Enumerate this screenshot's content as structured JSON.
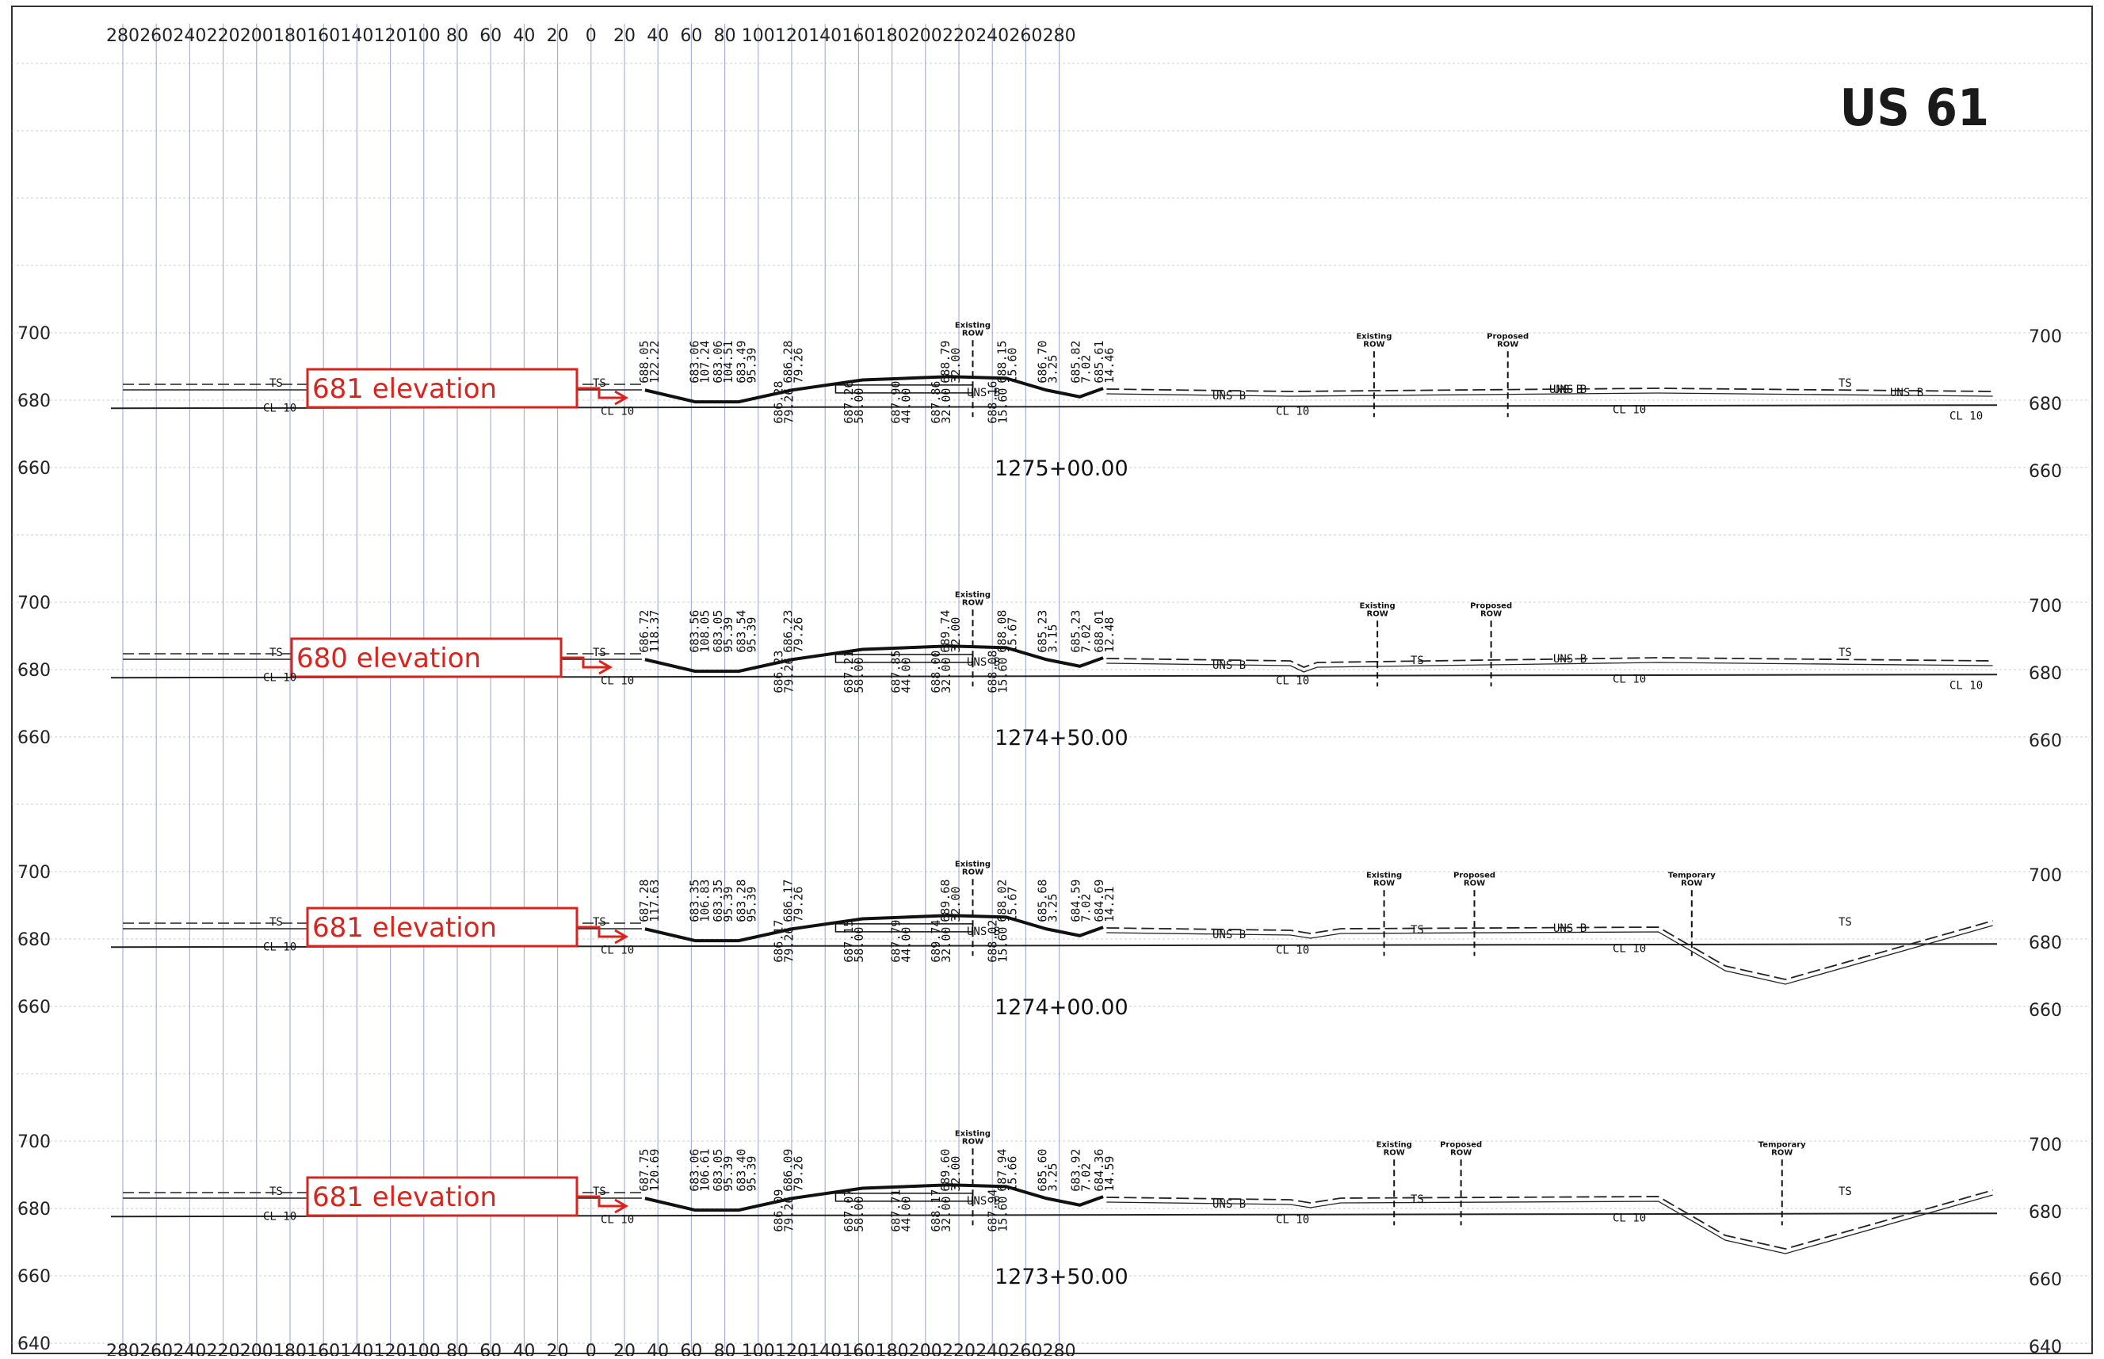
{
  "sheet_title": "US 61",
  "offset_labels": [
    "280",
    "260",
    "240",
    "220",
    "200",
    "180",
    "160",
    "140",
    "120",
    "100",
    "80",
    "60",
    "40",
    "20",
    "0",
    "20",
    "40",
    "60",
    "80",
    "100",
    "120",
    "140",
    "160",
    "180",
    "200",
    "220",
    "240",
    "260",
    "280"
  ],
  "sections": [
    {
      "station": "1275+00.00",
      "callout": "681 elevation",
      "elev_labels": [
        "700",
        "680",
        "660"
      ],
      "line_tags": {
        "ts_left": "TS",
        "ts_mid": "TS",
        "cl_left": "CL 10",
        "cl_mid": "CL 10",
        "uns_1": "UNS B",
        "uns_2": "UNS B",
        "uns_3": "UNS B",
        "uns_4": "UNS B",
        "uns_5": "UNS B",
        "ts_right": "TS",
        "cl_r1": "CL 10",
        "cl_r2": "CL 10",
        "cl_r3": "CL 10"
      },
      "markers": [
        {
          "label": "Existing\nROW"
        },
        {
          "label": "Existing\nROW"
        },
        {
          "label": "Proposed\nROW"
        }
      ],
      "stakes_top": [
        "688.05\n122.22",
        "683.06\n107.24",
        "683.06\n104.51",
        "683.49\n95.39",
        "686.28\n79.26",
        "688.79\n32.00",
        "688.15\n15.60",
        "686.70\n3.25",
        "685.82\n7.02",
        "685.61\n14.46"
      ],
      "stakes_bottom": [
        "686.28\n79.26",
        "687.26\n58.00",
        "687.90\n44.00",
        "687.86\n32.00",
        "688.16\n15.60"
      ]
    },
    {
      "station": "1274+50.00",
      "callout": "680 elevation",
      "elev_labels": [
        "700",
        "680",
        "660"
      ],
      "line_tags": {
        "ts_left": "TS",
        "ts_mid": "TS",
        "cl_left": "CL 10",
        "cl_mid": "CL 10",
        "uns_1": "UNS B",
        "uns_2": "UNS B",
        "uns_3": "UNS B",
        "ts_right": "TS",
        "ts_r2": "TS",
        "cl_r1": "CL 10",
        "cl_r2": "CL 10",
        "cl_r3": "CL 10"
      },
      "markers": [
        {
          "label": "Existing\nROW"
        },
        {
          "label": "Existing\nROW"
        },
        {
          "label": "Proposed\nROW"
        }
      ],
      "stakes_top": [
        "686.72\n118.37",
        "683.56\n108.05",
        "683.05\n95.39",
        "683.54\n95.39",
        "686.23\n79.26",
        "689.74\n32.00",
        "688.08\n15.67",
        "685.23\n3.15",
        "685.23\n7.02",
        "688.01\n12.48"
      ],
      "stakes_bottom": [
        "686.23\n79.26",
        "687.21\n58.00",
        "687.85\n44.00",
        "688.00\n32.00",
        "688.08\n15.60"
      ]
    },
    {
      "station": "1274+00.00",
      "callout": "681 elevation",
      "elev_labels": [
        "700",
        "680",
        "660"
      ],
      "line_tags": {
        "ts_left": "TS",
        "ts_mid": "TS",
        "cl_left": "CL 10",
        "cl_mid": "CL 10",
        "uns_1": "UNS B",
        "uns_2": "UNS B",
        "uns_3": "UNS B",
        "ts_right": "TS",
        "ts_r2": "TS",
        "cl_r1": "CL 10",
        "cl_r2": "CL 10"
      },
      "markers": [
        {
          "label": "Existing\nROW"
        },
        {
          "label": "Existing\nROW"
        },
        {
          "label": "Proposed\nROW"
        },
        {
          "label": "Temporary\nROW"
        }
      ],
      "stakes_top": [
        "687.28\n117.63",
        "683.35\n106.83",
        "683.35\n95.39",
        "683.28\n95.39",
        "686.17\n79.26",
        "689.68\n32.00",
        "688.02\n15.67",
        "685.68\n3.25",
        "684.59\n7.02",
        "684.69\n14.21"
      ],
      "stakes_bottom": [
        "686.17\n79.26",
        "687.15\n58.00",
        "687.79\n44.00",
        "689.74\n32.00",
        "688.02\n15.60"
      ]
    },
    {
      "station": "1273+50.00",
      "callout": "681 elevation",
      "elev_labels": [
        "700",
        "680",
        "660",
        "640"
      ],
      "line_tags": {
        "ts_left": "TS",
        "ts_mid": "TS",
        "cl_left": "CL 10",
        "cl_mid": "CL 10",
        "uns_1": "UNS B",
        "uns_2": "UNS B",
        "ts_right": "TS",
        "ts_r2": "TS",
        "cl_r1": "CL 10",
        "cl_r2": "CL 10"
      },
      "markers": [
        {
          "label": "Existing\nROW"
        },
        {
          "label": "Existing\nROW"
        },
        {
          "label": "Proposed\nROW"
        },
        {
          "label": "Temporary\nROW"
        }
      ],
      "stakes_top": [
        "687.75\n120.69",
        "683.06\n106.61",
        "683.05\n95.39",
        "683.40\n95.39",
        "686.09\n79.26",
        "689.60\n32.00",
        "687.94\n15.66",
        "685.60\n3.25",
        "683.92\n7.02",
        "684.36\n14.59"
      ],
      "stakes_bottom": [
        "686.09\n79.26",
        "687.07\n58.00",
        "687.71\n44.00",
        "688.17\n32.00",
        "687.94\n15.60"
      ]
    }
  ]
}
